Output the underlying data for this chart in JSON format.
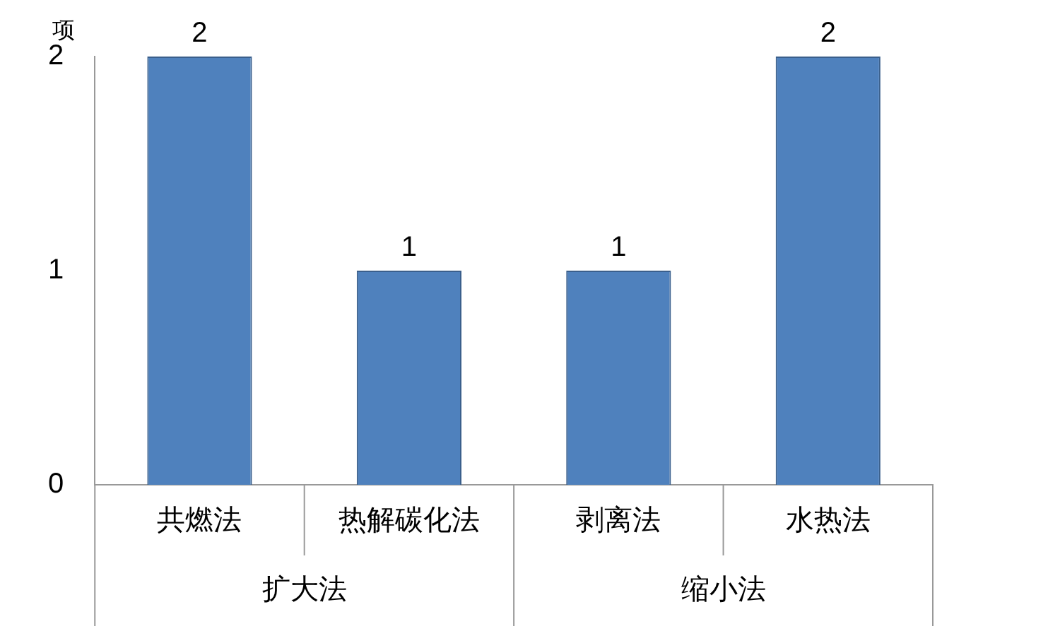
{
  "chart_data": {
    "type": "bar",
    "ylabel": "项",
    "categories": [
      "共燃法",
      "热解碳化法",
      "剥离法",
      "水热法"
    ],
    "values": [
      2,
      1,
      1,
      2
    ],
    "color": "#4f81bd",
    "ylim": [
      0,
      2
    ],
    "yticks": [
      0,
      1,
      2
    ],
    "grid": false,
    "legend": false,
    "data_labels": true,
    "annotations": [
      "扩大法",
      "缩小法"
    ]
  }
}
